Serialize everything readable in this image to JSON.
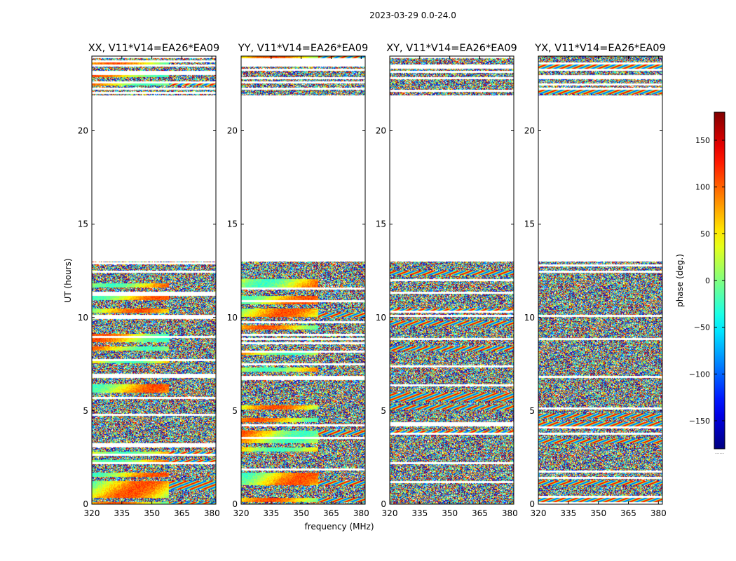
{
  "chart_data": {
    "type": "heatmap",
    "suptitle": "2023-03-29 0.0-24.0",
    "xlabel": "frequency (MHz)",
    "ylabel": "UT (hours)",
    "colorbar_label": "phase (deg.)",
    "colormap": "jet",
    "xlim": [
      320,
      382
    ],
    "ylim": [
      0,
      24
    ],
    "xticks": [
      320,
      335,
      350,
      365,
      380
    ],
    "xtick_labels": [
      "320",
      "335",
      "350",
      "365",
      "380"
    ],
    "yticks": [
      0,
      5,
      10,
      15,
      20
    ],
    "ytick_labels": [
      "0",
      "5",
      "10",
      "15",
      "20"
    ],
    "clim": [
      -180,
      180
    ],
    "colorbar_ticks": [
      150,
      100,
      50,
      0,
      -50,
      -100,
      -150
    ],
    "colorbar_tick_labels": [
      "150",
      "100",
      "50",
      "0",
      "−50",
      "−100",
      "−150"
    ],
    "colorbar_under_label": "......",
    "data_blocks_hours": [
      [
        0.0,
        13.0
      ],
      [
        21.9,
        24.0
      ]
    ],
    "gap_hours": [
      13.0,
      21.9
    ],
    "panels": [
      {
        "title": "XX, V11*V14=EA26*EA09",
        "polarization": "XX",
        "baseline": "V11*V14=EA26*EA09"
      },
      {
        "title": "YY, V11*V14=EA26*EA09",
        "polarization": "YY",
        "baseline": "V11*V14=EA26*EA09"
      },
      {
        "title": "XY, V11*V14=EA26*EA09",
        "polarization": "XY",
        "baseline": "V11*V14=EA26*EA09"
      },
      {
        "title": "YX, V11*V14=EA26*EA09",
        "polarization": "YX",
        "baseline": "V11*V14=EA26*EA09"
      }
    ]
  }
}
